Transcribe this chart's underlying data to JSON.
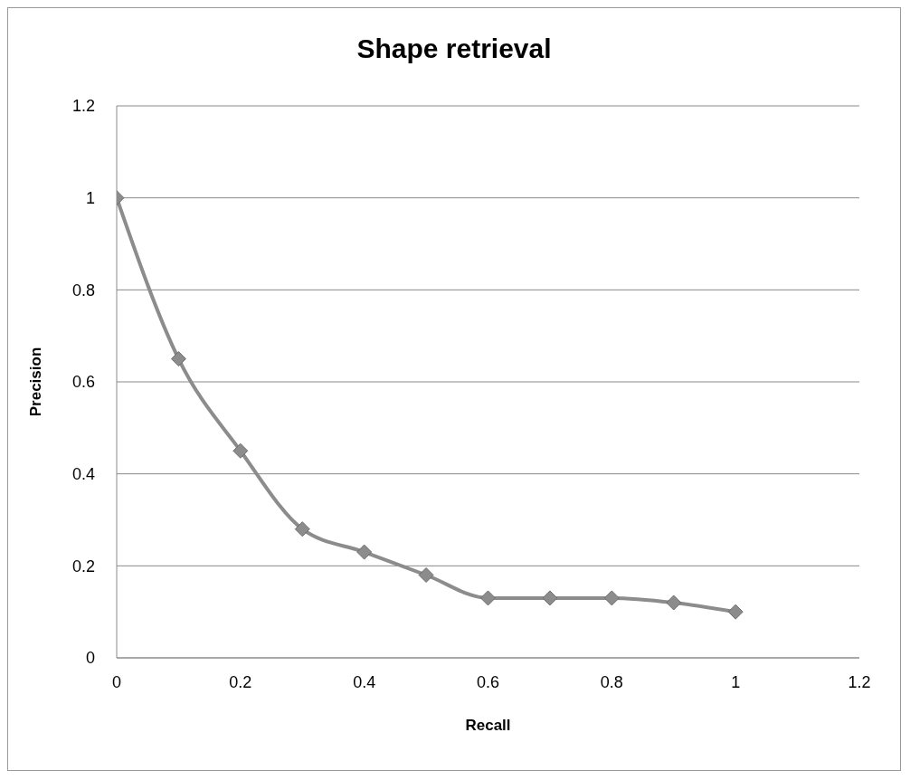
{
  "chart_data": {
    "type": "line",
    "title": "Shape retrieval",
    "xlabel": "Recall",
    "ylabel": "Precision",
    "x": [
      0,
      0.1,
      0.2,
      0.3,
      0.4,
      0.5,
      0.6,
      0.7,
      0.8,
      0.9,
      1
    ],
    "series": [
      {
        "color": "#8c8c8c",
        "values": [
          1,
          0.65,
          0.45,
          0.28,
          0.23,
          0.18,
          0.13,
          0.13,
          0.13,
          0.12,
          0.1
        ]
      }
    ],
    "xlim": [
      0,
      1.2
    ],
    "xticks": [
      0,
      0.2,
      0.4,
      0.6,
      0.8,
      1,
      1.2
    ],
    "ylim": [
      0,
      1.2
    ],
    "yticks": [
      0,
      0.2,
      0.4,
      0.6,
      0.8,
      1,
      1.2
    ],
    "grid": "y",
    "legend": false,
    "marker": "diamond",
    "line_style": "solid"
  }
}
